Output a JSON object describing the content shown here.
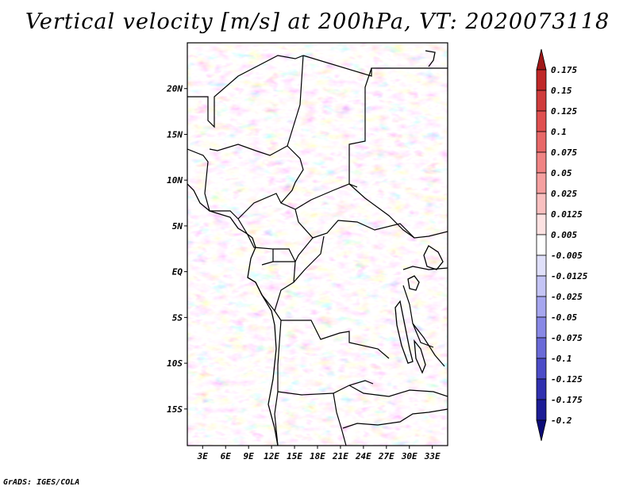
{
  "title": "Vertical velocity [m/s] at 200hPa, VT: 2020073118",
  "credit": "GrADS: IGES/COLA",
  "map": {
    "lon_labels": [
      "3E",
      "6E",
      "9E",
      "12E",
      "15E",
      "18E",
      "21E",
      "24E",
      "27E",
      "30E",
      "33E"
    ],
    "lat_labels": [
      "20N",
      "15N",
      "10N",
      "5N",
      "EQ",
      "5S",
      "10S",
      "15S"
    ],
    "lon_range": [
      1,
      35
    ],
    "lat_range": [
      -19,
      25
    ]
  },
  "colorbar": {
    "labels": [
      "0.175",
      "0.15",
      "0.125",
      "0.1",
      "0.075",
      "0.05",
      "0.025",
      "0.0125",
      "0.005",
      "-0.005",
      "-0.0125",
      "-0.025",
      "-0.05",
      "-0.075",
      "-0.1",
      "-0.125",
      "-0.175",
      "-0.2"
    ],
    "colors": [
      "#a01818",
      "#c02828",
      "#d03c3c",
      "#e05050",
      "#e86868",
      "#f08484",
      "#f5a0a0",
      "#f9c0c0",
      "#fde2e2",
      "#ffffff",
      "#e0e0fa",
      "#c4c4f5",
      "#a6a6ef",
      "#8888e6",
      "#6a6ad8",
      "#4c4cc8",
      "#3030b0",
      "#1c1c96",
      "#0c0c78"
    ]
  }
}
